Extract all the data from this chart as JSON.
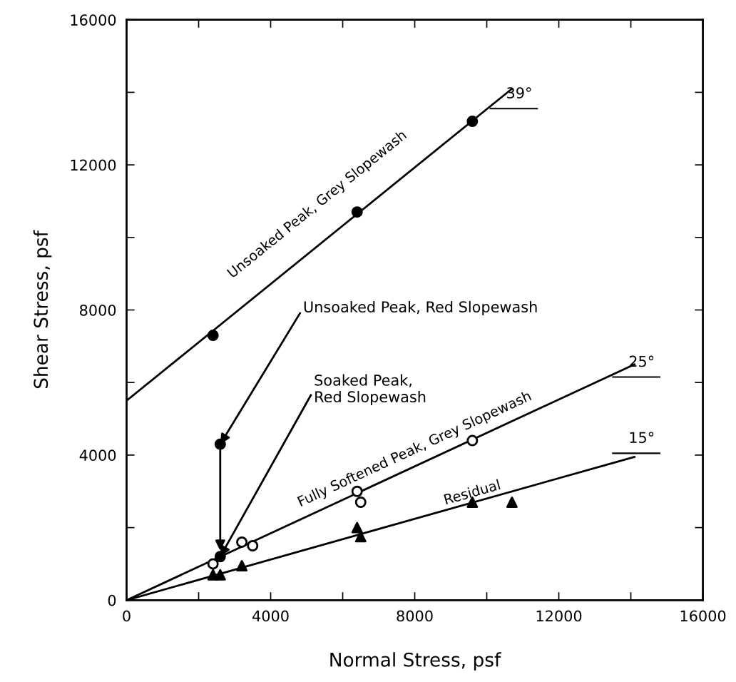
{
  "chart_data": {
    "type": "scatter",
    "xlabel": "Normal Stress, psf",
    "ylabel": "Shear Stress, psf",
    "xlim": [
      0,
      16000
    ],
    "ylim": [
      0,
      16000
    ],
    "xticks": [
      0,
      {
        "value": 2000,
        "label": null
      },
      4000,
      {
        "value": 6000,
        "label": null
      },
      8000,
      {
        "value": 10000,
        "label": null
      },
      12000,
      {
        "value": 14000,
        "label": null
      },
      16000
    ],
    "yticks": [
      0,
      {
        "value": 2000,
        "label": null
      },
      4000,
      {
        "value": 6000,
        "label": null
      },
      8000,
      {
        "value": 10000,
        "label": null
      },
      12000,
      {
        "value": 14000,
        "label": null
      },
      16000
    ],
    "grid": false,
    "legend": false,
    "series": [
      {
        "type": "line",
        "color": "#000000",
        "x": [
          0,
          10700
        ],
        "values": [
          5500,
          14100
        ],
        "marker": "none",
        "line_style": "solid"
      },
      {
        "type": "line",
        "color": "#000000",
        "x": [
          0,
          14100
        ],
        "values": [
          0,
          6500
        ],
        "marker": "none",
        "line_style": "solid"
      },
      {
        "type": "line",
        "color": "#000000",
        "x": [
          0,
          14100
        ],
        "values": [
          0,
          3950
        ],
        "marker": "none",
        "line_style": "solid"
      },
      {
        "color": "#000000",
        "x": [
          2400,
          6400,
          9600
        ],
        "values": [
          7300,
          10700,
          13200
        ],
        "marker": "circle"
      },
      {
        "color": "#000000",
        "x": [
          2600,
          2600
        ],
        "values": [
          4300,
          1200
        ],
        "marker": "circle"
      },
      {
        "color": "#000000",
        "x": [
          2400,
          3200,
          3500,
          6400,
          6500,
          9600
        ],
        "values": [
          1000,
          1600,
          1500,
          3000,
          2700,
          4400
        ],
        "marker": "circle"
      },
      {
        "color": "#000000",
        "x": [
          2400,
          2600,
          3200,
          6400,
          6500,
          9600,
          10700
        ],
        "values": [
          700,
          700,
          950,
          2000,
          1750,
          2700,
          2700
        ],
        "marker": "triangle"
      }
    ],
    "annotations": [
      "Unsoaked Peak, Grey Slopewash",
      "Fully Softened Peak, Grey Slopewash",
      "Residual",
      "39°",
      "25°",
      "15°",
      {
        "text": "Unsoaked Peak, Red Slopewash",
        "x": 2600,
        "y": 4300
      },
      {
        "text": "Soaked Peak,\nRed Slopewash",
        "x": 2600,
        "y": 1200
      }
    ]
  }
}
